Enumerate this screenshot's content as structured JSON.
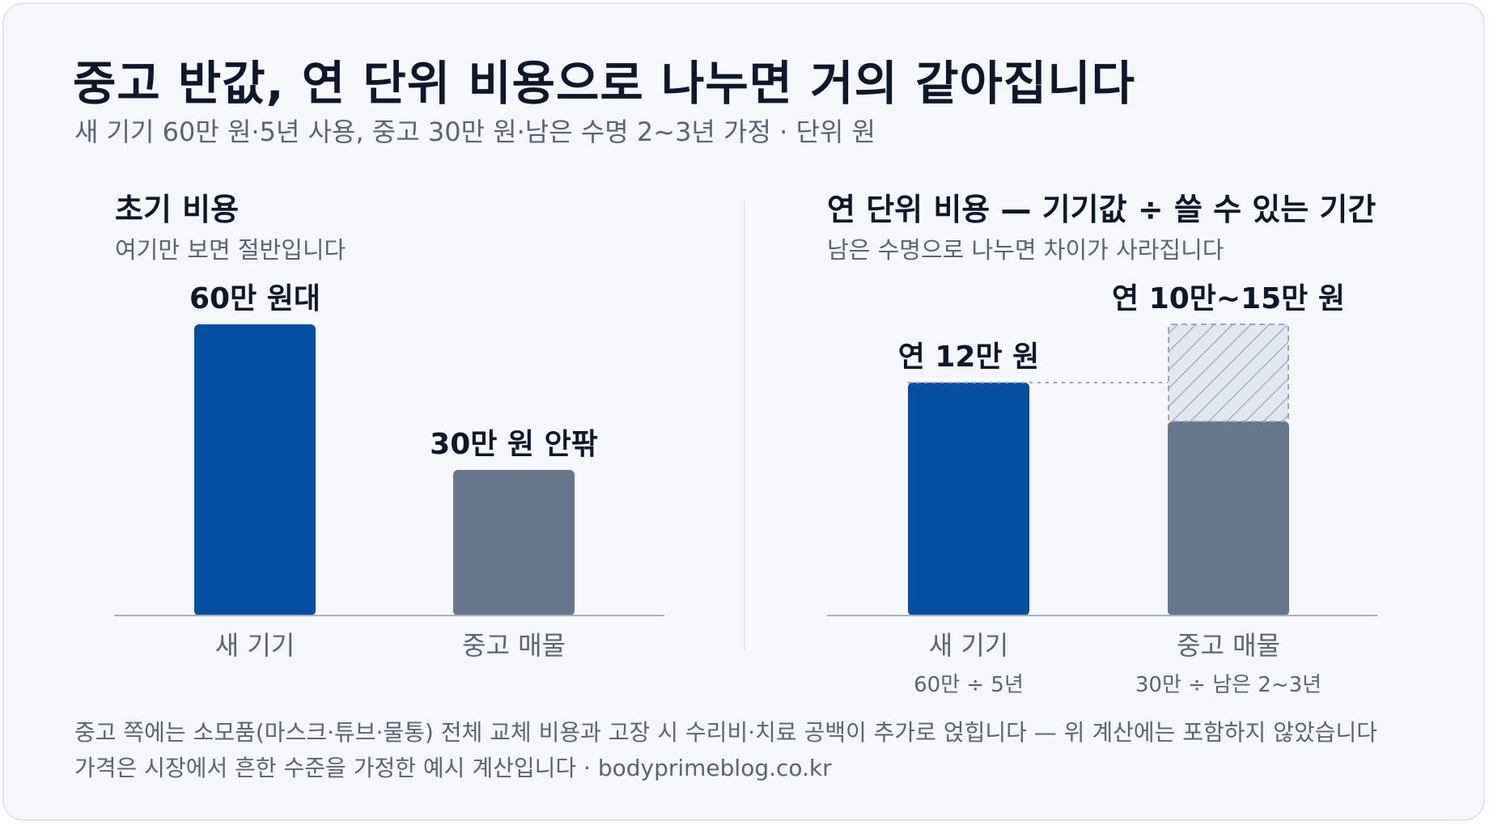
{
  "title": "중고 반값, 연 단위 비용으로 나누면 거의 같아집니다",
  "subtitle": "새 기기 60만 원·5년 사용, 중고 30만 원·남은 수명 2~3년 가정 · 단위 원",
  "left_panel": {
    "title": "초기 비용",
    "subtitle": "여기만 보면 절반입니다"
  },
  "right_panel": {
    "title": "연 단위 비용 — 기기값 ÷ 쓸 수 있는 기간",
    "subtitle": "남은 수명으로 나누면 차이가 사라집니다"
  },
  "colors": {
    "new_device": "#054fa3",
    "used_device": "#66778c",
    "range_fill": "#e3e7ef",
    "range_hatch": "#9aa6b7",
    "baseline": "#a9b0bc"
  },
  "chart_data": [
    {
      "type": "bar",
      "title": "초기 비용",
      "unit": "만 원",
      "categories": [
        "새 기기",
        "중고 매물"
      ],
      "values": [
        60,
        30
      ],
      "data_labels": [
        "60만 원대",
        "30만 원 안팎"
      ],
      "ylim": [
        0,
        60
      ]
    },
    {
      "type": "bar",
      "title": "연 단위 비용 — 기기값 ÷ 쓸 수 있는 기간",
      "unit": "만 원",
      "categories": [
        "새 기기",
        "중고 매물"
      ],
      "sublabels": [
        "60만 ÷ 5년",
        "30만 ÷ 남은 2~3년"
      ],
      "values": [
        12,
        10
      ],
      "range_high": [
        null,
        15
      ],
      "data_labels": [
        "연 12만 원",
        "연 10만~15만 원"
      ],
      "ylim": [
        0,
        15
      ]
    }
  ],
  "footnotes": [
    "중고 쪽에는 소모품(마스크·튜브·물통) 전체 교체 비용과 고장 시 수리비·치료 공백이 추가로 얹힙니다 — 위 계산에는 포함하지 않았습니다",
    "가격은 시장에서 흔한 수준을 가정한 예시 계산입니다 · bodyprimeblog.co.kr"
  ]
}
